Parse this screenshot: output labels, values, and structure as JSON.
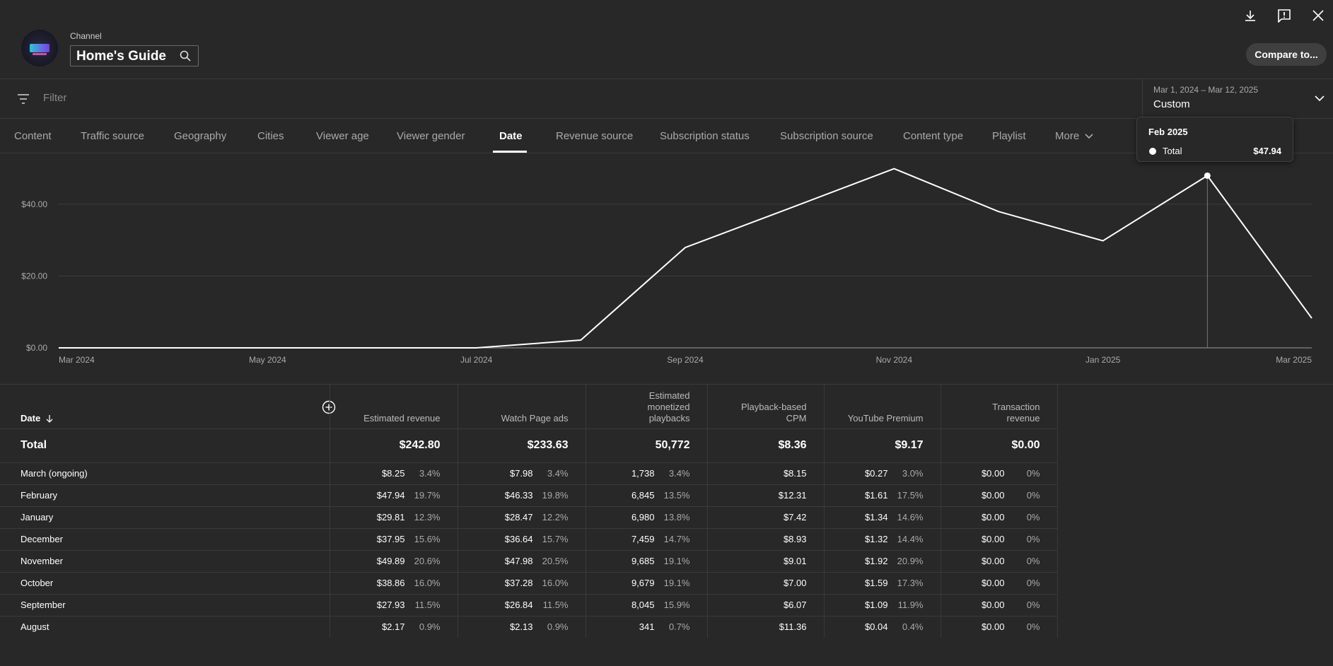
{
  "header": {
    "channel_label": "Channel",
    "channel_name": "Home's Guide",
    "compare_label": "Compare to..."
  },
  "filter": {
    "placeholder": "Filter",
    "date_range_sub": "Mar 1, 2024 – Mar 12, 2025",
    "date_range_main": "Custom"
  },
  "tabs": [
    {
      "label": "Content"
    },
    {
      "label": "Traffic source"
    },
    {
      "label": "Geography"
    },
    {
      "label": "Cities"
    },
    {
      "label": "Viewer age"
    },
    {
      "label": "Viewer gender"
    },
    {
      "label": "Date"
    },
    {
      "label": "Revenue source"
    },
    {
      "label": "Subscription status"
    },
    {
      "label": "Subscription source"
    },
    {
      "label": "Content type"
    },
    {
      "label": "Playlist"
    },
    {
      "label": "More"
    }
  ],
  "tooltip": {
    "title": "Feb 2025",
    "label": "Total",
    "value": "$47.94"
  },
  "chart_data": {
    "type": "line",
    "x": [
      "Mar 2024",
      "Apr 2024",
      "May 2024",
      "Jun 2024",
      "Jul 2024",
      "Aug 2024",
      "Sep 2024",
      "Oct 2024",
      "Nov 2024",
      "Dec 2024",
      "Jan 2025",
      "Feb 2025",
      "Mar 2025"
    ],
    "series": [
      {
        "name": "Total",
        "values": [
          0,
          0,
          0,
          0,
          0,
          2.17,
          27.93,
          38.86,
          49.89,
          37.95,
          29.81,
          47.94,
          8.25
        ]
      }
    ],
    "x_tick_labels": [
      "Mar 2024",
      "May 2024",
      "Jul 2024",
      "Sep 2024",
      "Nov 2024",
      "Jan 2025",
      "Mar 2025"
    ],
    "y_tick_labels": [
      "$0.00",
      "$20.00",
      "$40.00"
    ],
    "y_ticks": [
      0,
      20,
      40
    ],
    "ylim": [
      0,
      50
    ],
    "highlight": "Feb 2025",
    "grid": true,
    "line_color": "#ffffff"
  },
  "table": {
    "sort_column": "Date",
    "headers": [
      [
        "Estimated revenue"
      ],
      [
        "Watch Page ads"
      ],
      [
        "Estimated",
        "monetized",
        "playbacks"
      ],
      [
        "Playback-based",
        "CPM"
      ],
      [
        "YouTube Premium"
      ],
      [
        "Transaction",
        "revenue"
      ]
    ],
    "total": {
      "label": "Total",
      "values": [
        "$242.80",
        "$233.63",
        "50,772",
        "$8.36",
        "$9.17",
        "$0.00"
      ]
    },
    "rows": [
      {
        "label": "March (ongoing)",
        "cells": [
          [
            "$8.25",
            "3.4%"
          ],
          [
            "$7.98",
            "3.4%"
          ],
          [
            "1,738",
            "3.4%"
          ],
          [
            "$8.15",
            ""
          ],
          [
            "$0.27",
            "3.0%"
          ],
          [
            "$0.00",
            "0%"
          ]
        ]
      },
      {
        "label": "February",
        "cells": [
          [
            "$47.94",
            "19.7%"
          ],
          [
            "$46.33",
            "19.8%"
          ],
          [
            "6,845",
            "13.5%"
          ],
          [
            "$12.31",
            ""
          ],
          [
            "$1.61",
            "17.5%"
          ],
          [
            "$0.00",
            "0%"
          ]
        ]
      },
      {
        "label": "January",
        "cells": [
          [
            "$29.81",
            "12.3%"
          ],
          [
            "$28.47",
            "12.2%"
          ],
          [
            "6,980",
            "13.8%"
          ],
          [
            "$7.42",
            ""
          ],
          [
            "$1.34",
            "14.6%"
          ],
          [
            "$0.00",
            "0%"
          ]
        ]
      },
      {
        "label": "December",
        "cells": [
          [
            "$37.95",
            "15.6%"
          ],
          [
            "$36.64",
            "15.7%"
          ],
          [
            "7,459",
            "14.7%"
          ],
          [
            "$8.93",
            ""
          ],
          [
            "$1.32",
            "14.4%"
          ],
          [
            "$0.00",
            "0%"
          ]
        ]
      },
      {
        "label": "November",
        "cells": [
          [
            "$49.89",
            "20.6%"
          ],
          [
            "$47.98",
            "20.5%"
          ],
          [
            "9,685",
            "19.1%"
          ],
          [
            "$9.01",
            ""
          ],
          [
            "$1.92",
            "20.9%"
          ],
          [
            "$0.00",
            "0%"
          ]
        ]
      },
      {
        "label": "October",
        "cells": [
          [
            "$38.86",
            "16.0%"
          ],
          [
            "$37.28",
            "16.0%"
          ],
          [
            "9,679",
            "19.1%"
          ],
          [
            "$7.00",
            ""
          ],
          [
            "$1.59",
            "17.3%"
          ],
          [
            "$0.00",
            "0%"
          ]
        ]
      },
      {
        "label": "September",
        "cells": [
          [
            "$27.93",
            "11.5%"
          ],
          [
            "$26.84",
            "11.5%"
          ],
          [
            "8,045",
            "15.9%"
          ],
          [
            "$6.07",
            ""
          ],
          [
            "$1.09",
            "11.9%"
          ],
          [
            "$0.00",
            "0%"
          ]
        ]
      },
      {
        "label": "August",
        "cells": [
          [
            "$2.17",
            "0.9%"
          ],
          [
            "$2.13",
            "0.9%"
          ],
          [
            "341",
            "0.7%"
          ],
          [
            "$11.36",
            ""
          ],
          [
            "$0.04",
            "0.4%"
          ],
          [
            "$0.00",
            "0%"
          ]
        ]
      }
    ]
  }
}
